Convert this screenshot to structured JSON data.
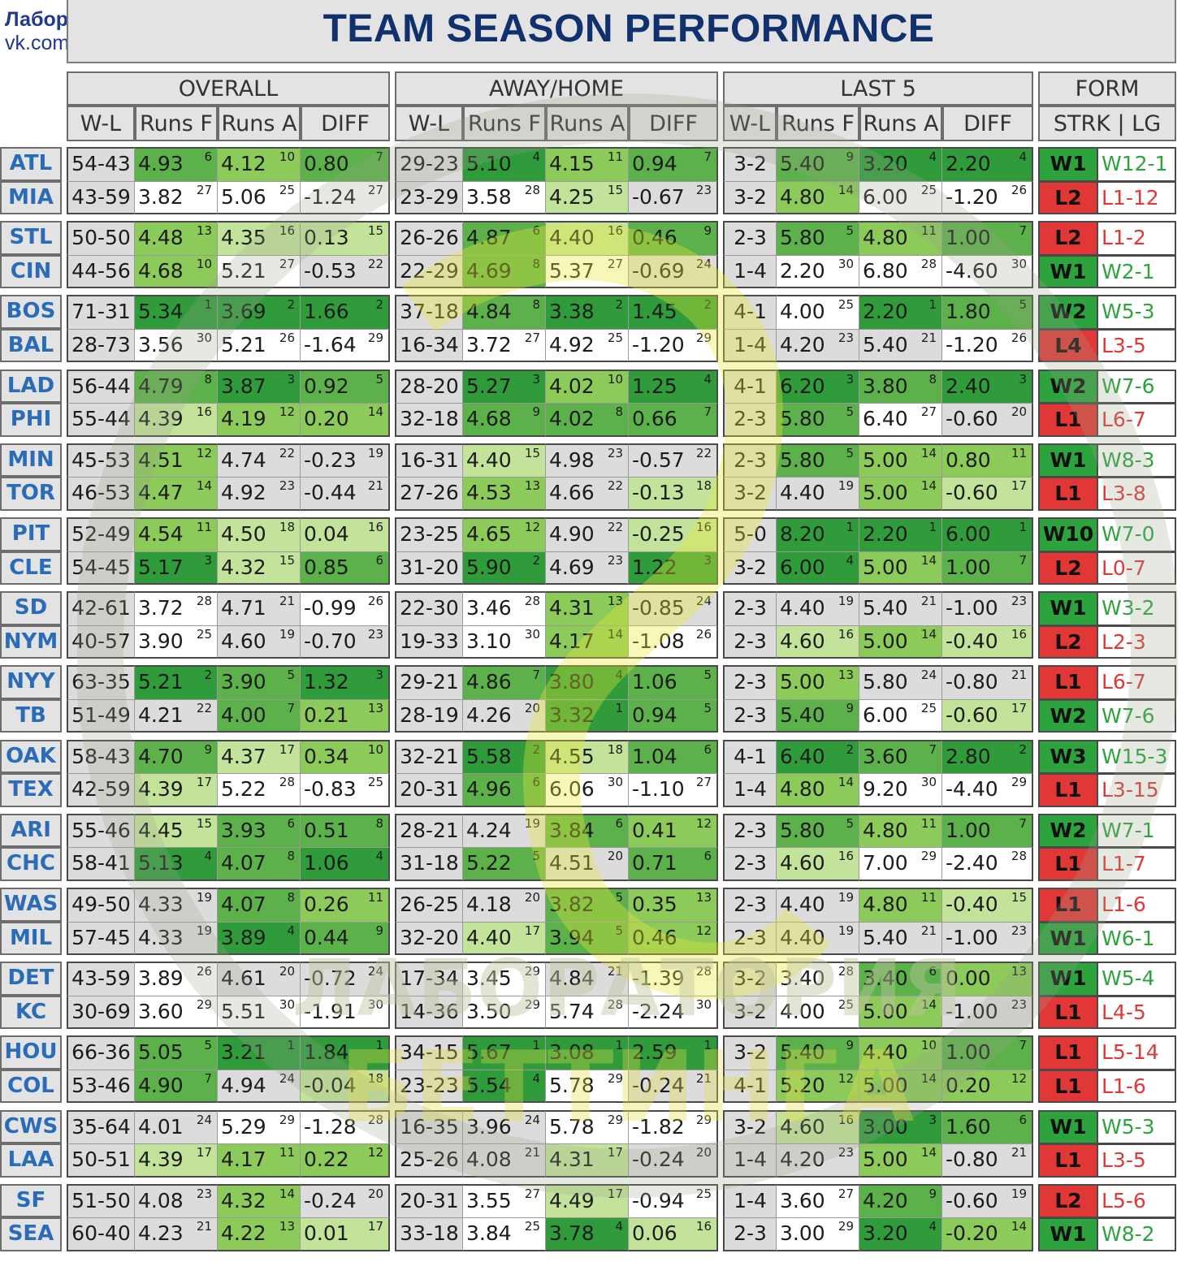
{
  "credit": {
    "line1": "Лаборатория беттинга ©",
    "line2": "vk.com/bettlab"
  },
  "title": "TEAM SEASON PERFORMANCE",
  "watermark": {
    "line1": "ЛАБОРАТОРИЯ",
    "line2": "БЕТТИНГА"
  },
  "groups": {
    "overall": "OVERALL",
    "awayhome": "AWAY/HOME",
    "last5": "LAST 5",
    "form": "FORM"
  },
  "columns": {
    "wl": "W-L",
    "rf": "Runs F",
    "ra": "Runs A",
    "diff": "DIFF",
    "strk_lg": "STRK | LG"
  },
  "colors": {
    "g1": "#2f9b3a",
    "g2": "#5cb14a",
    "g3": "#8cca5a",
    "g4": "#c4e39a",
    "gray": "#dcdcdc",
    "white": "#ffffff",
    "win": "#2ca33c",
    "loss": "#e23737",
    "team": "#2b6cb8"
  },
  "pairs": [
    [
      {
        "team": "ATL",
        "o": [
          "54-43",
          "4.93",
          "6",
          "4.12",
          "10",
          "0.80",
          "7"
        ],
        "a": [
          "29-23",
          "5.10",
          "4",
          "4.15",
          "11",
          "0.94",
          "7"
        ],
        "l": [
          "3-2",
          "5.40",
          "9",
          "3.20",
          "4",
          "2.20",
          "4"
        ],
        "strk": "W1",
        "lg": "W12-1"
      },
      {
        "team": "MIA",
        "o": [
          "43-59",
          "3.82",
          "27",
          "5.06",
          "25",
          "-1.24",
          "27"
        ],
        "a": [
          "23-29",
          "3.58",
          "28",
          "4.25",
          "15",
          "-0.67",
          "23"
        ],
        "l": [
          "3-2",
          "4.80",
          "14",
          "6.00",
          "25",
          "-1.20",
          "26"
        ],
        "strk": "L2",
        "lg": "L1-12"
      }
    ],
    [
      {
        "team": "STL",
        "o": [
          "50-50",
          "4.48",
          "13",
          "4.35",
          "16",
          "0.13",
          "15"
        ],
        "a": [
          "26-26",
          "4.87",
          "6",
          "4.40",
          "16",
          "0.46",
          "9"
        ],
        "l": [
          "2-3",
          "5.80",
          "5",
          "4.80",
          "11",
          "1.00",
          "7"
        ],
        "strk": "L2",
        "lg": "L1-2"
      },
      {
        "team": "CIN",
        "o": [
          "44-56",
          "4.68",
          "10",
          "5.21",
          "27",
          "-0.53",
          "22"
        ],
        "a": [
          "22-29",
          "4.69",
          "8",
          "5.37",
          "27",
          "-0.69",
          "24"
        ],
        "l": [
          "1-4",
          "2.20",
          "30",
          "6.80",
          "28",
          "-4.60",
          "30"
        ],
        "strk": "W1",
        "lg": "W2-1"
      }
    ],
    [
      {
        "team": "BOS",
        "o": [
          "71-31",
          "5.34",
          "1",
          "3.69",
          "2",
          "1.66",
          "2"
        ],
        "a": [
          "37-18",
          "4.84",
          "8",
          "3.38",
          "2",
          "1.45",
          "2"
        ],
        "l": [
          "4-1",
          "4.00",
          "25",
          "2.20",
          "1",
          "1.80",
          "5"
        ],
        "strk": "W2",
        "lg": "W5-3"
      },
      {
        "team": "BAL",
        "o": [
          "28-73",
          "3.56",
          "30",
          "5.21",
          "26",
          "-1.64",
          "29"
        ],
        "a": [
          "16-34",
          "3.72",
          "27",
          "4.92",
          "25",
          "-1.20",
          "29"
        ],
        "l": [
          "1-4",
          "4.20",
          "23",
          "5.40",
          "21",
          "-1.20",
          "26"
        ],
        "strk": "L4",
        "lg": "L3-5"
      }
    ],
    [
      {
        "team": "LAD",
        "o": [
          "56-44",
          "4.79",
          "8",
          "3.87",
          "3",
          "0.92",
          "5"
        ],
        "a": [
          "28-20",
          "5.27",
          "3",
          "4.02",
          "10",
          "1.25",
          "4"
        ],
        "l": [
          "4-1",
          "6.20",
          "3",
          "3.80",
          "8",
          "2.40",
          "3"
        ],
        "strk": "W2",
        "lg": "W7-6"
      },
      {
        "team": "PHI",
        "o": [
          "55-44",
          "4.39",
          "16",
          "4.19",
          "12",
          "0.20",
          "14"
        ],
        "a": [
          "32-18",
          "4.68",
          "9",
          "4.02",
          "8",
          "0.66",
          "7"
        ],
        "l": [
          "2-3",
          "5.80",
          "5",
          "6.40",
          "27",
          "-0.60",
          "20"
        ],
        "strk": "L1",
        "lg": "L6-7"
      }
    ],
    [
      {
        "team": "MIN",
        "o": [
          "45-53",
          "4.51",
          "12",
          "4.74",
          "22",
          "-0.23",
          "19"
        ],
        "a": [
          "16-31",
          "4.40",
          "15",
          "4.98",
          "23",
          "-0.57",
          "22"
        ],
        "l": [
          "2-3",
          "5.80",
          "5",
          "5.00",
          "14",
          "0.80",
          "11"
        ],
        "strk": "W1",
        "lg": "W8-3"
      },
      {
        "team": "TOR",
        "o": [
          "46-53",
          "4.47",
          "14",
          "4.92",
          "23",
          "-0.44",
          "21"
        ],
        "a": [
          "27-26",
          "4.53",
          "13",
          "4.66",
          "22",
          "-0.13",
          "18"
        ],
        "l": [
          "3-2",
          "4.40",
          "19",
          "5.00",
          "14",
          "-0.60",
          "17"
        ],
        "strk": "L1",
        "lg": "L3-8"
      }
    ],
    [
      {
        "team": "PIT",
        "o": [
          "52-49",
          "4.54",
          "11",
          "4.50",
          "18",
          "0.04",
          "16"
        ],
        "a": [
          "23-25",
          "4.65",
          "12",
          "4.90",
          "22",
          "-0.25",
          "16"
        ],
        "l": [
          "5-0",
          "8.20",
          "1",
          "2.20",
          "1",
          "6.00",
          "1"
        ],
        "strk": "W10",
        "lg": "W7-0"
      },
      {
        "team": "CLE",
        "o": [
          "54-45",
          "5.17",
          "3",
          "4.32",
          "15",
          "0.85",
          "6"
        ],
        "a": [
          "31-20",
          "5.90",
          "2",
          "4.69",
          "23",
          "1.22",
          "3"
        ],
        "l": [
          "3-2",
          "6.00",
          "4",
          "5.00",
          "14",
          "1.00",
          "7"
        ],
        "strk": "L2",
        "lg": "L0-7"
      }
    ],
    [
      {
        "team": "SD",
        "o": [
          "42-61",
          "3.72",
          "28",
          "4.71",
          "21",
          "-0.99",
          "26"
        ],
        "a": [
          "22-30",
          "3.46",
          "28",
          "4.31",
          "13",
          "-0.85",
          "24"
        ],
        "l": [
          "2-3",
          "4.40",
          "19",
          "5.40",
          "21",
          "-1.00",
          "23"
        ],
        "strk": "W1",
        "lg": "W3-2"
      },
      {
        "team": "NYM",
        "o": [
          "40-57",
          "3.90",
          "25",
          "4.60",
          "19",
          "-0.70",
          "23"
        ],
        "a": [
          "19-33",
          "3.10",
          "30",
          "4.17",
          "14",
          "-1.08",
          "26"
        ],
        "l": [
          "2-3",
          "4.60",
          "16",
          "5.00",
          "14",
          "-0.40",
          "16"
        ],
        "strk": "L2",
        "lg": "L2-3"
      }
    ],
    [
      {
        "team": "NYY",
        "o": [
          "63-35",
          "5.21",
          "2",
          "3.90",
          "5",
          "1.32",
          "3"
        ],
        "a": [
          "29-21",
          "4.86",
          "7",
          "3.80",
          "4",
          "1.06",
          "5"
        ],
        "l": [
          "2-3",
          "5.00",
          "13",
          "5.80",
          "24",
          "-0.80",
          "21"
        ],
        "strk": "L1",
        "lg": "L6-7"
      },
      {
        "team": "TB",
        "o": [
          "51-49",
          "4.21",
          "22",
          "4.00",
          "7",
          "0.21",
          "13"
        ],
        "a": [
          "28-19",
          "4.26",
          "20",
          "3.32",
          "1",
          "0.94",
          "5"
        ],
        "l": [
          "2-3",
          "5.40",
          "9",
          "6.00",
          "25",
          "-0.60",
          "17"
        ],
        "strk": "W2",
        "lg": "W7-6"
      }
    ],
    [
      {
        "team": "OAK",
        "o": [
          "58-43",
          "4.70",
          "9",
          "4.37",
          "17",
          "0.34",
          "10"
        ],
        "a": [
          "32-21",
          "5.58",
          "2",
          "4.55",
          "18",
          "1.04",
          "6"
        ],
        "l": [
          "4-1",
          "6.40",
          "2",
          "3.60",
          "7",
          "2.80",
          "2"
        ],
        "strk": "W3",
        "lg": "W15-3"
      },
      {
        "team": "TEX",
        "o": [
          "42-59",
          "4.39",
          "17",
          "5.22",
          "28",
          "-0.83",
          "25"
        ],
        "a": [
          "20-31",
          "4.96",
          "6",
          "6.06",
          "30",
          "-1.10",
          "27"
        ],
        "l": [
          "1-4",
          "4.80",
          "14",
          "9.20",
          "30",
          "-4.40",
          "29"
        ],
        "strk": "L1",
        "lg": "L3-15"
      }
    ],
    [
      {
        "team": "ARI",
        "o": [
          "55-46",
          "4.45",
          "15",
          "3.93",
          "6",
          "0.51",
          "8"
        ],
        "a": [
          "28-21",
          "4.24",
          "19",
          "3.84",
          "6",
          "0.41",
          "12"
        ],
        "l": [
          "2-3",
          "5.80",
          "5",
          "4.80",
          "11",
          "1.00",
          "7"
        ],
        "strk": "W2",
        "lg": "W7-1"
      },
      {
        "team": "CHC",
        "o": [
          "58-41",
          "5.13",
          "4",
          "4.07",
          "8",
          "1.06",
          "4"
        ],
        "a": [
          "31-18",
          "5.22",
          "5",
          "4.51",
          "20",
          "0.71",
          "6"
        ],
        "l": [
          "2-3",
          "4.60",
          "16",
          "7.00",
          "29",
          "-2.40",
          "28"
        ],
        "strk": "L1",
        "lg": "L1-7"
      }
    ],
    [
      {
        "team": "WAS",
        "o": [
          "49-50",
          "4.33",
          "19",
          "4.07",
          "8",
          "0.26",
          "11"
        ],
        "a": [
          "26-25",
          "4.18",
          "20",
          "3.82",
          "5",
          "0.35",
          "13"
        ],
        "l": [
          "2-3",
          "4.40",
          "19",
          "4.80",
          "11",
          "-0.40",
          "15"
        ],
        "strk": "L1",
        "lg": "L1-6"
      },
      {
        "team": "MIL",
        "o": [
          "57-45",
          "4.33",
          "19",
          "3.89",
          "4",
          "0.44",
          "9"
        ],
        "a": [
          "32-20",
          "4.40",
          "17",
          "3.94",
          "5",
          "0.46",
          "12"
        ],
        "l": [
          "2-3",
          "4.40",
          "19",
          "5.40",
          "21",
          "-1.00",
          "23"
        ],
        "strk": "W1",
        "lg": "W6-1"
      }
    ],
    [
      {
        "team": "DET",
        "o": [
          "43-59",
          "3.89",
          "26",
          "4.61",
          "20",
          "-0.72",
          "24"
        ],
        "a": [
          "17-34",
          "3.45",
          "29",
          "4.84",
          "21",
          "-1.39",
          "28"
        ],
        "l": [
          "3-2",
          "3.40",
          "28",
          "3.40",
          "6",
          "0.00",
          "13"
        ],
        "strk": "W1",
        "lg": "W5-4"
      },
      {
        "team": "KC",
        "o": [
          "30-69",
          "3.60",
          "29",
          "5.51",
          "30",
          "-1.91",
          "30"
        ],
        "a": [
          "14-36",
          "3.50",
          "29",
          "5.74",
          "28",
          "-2.24",
          "30"
        ],
        "l": [
          "3-2",
          "4.00",
          "25",
          "5.00",
          "14",
          "-1.00",
          "23"
        ],
        "strk": "L1",
        "lg": "L4-5"
      }
    ],
    [
      {
        "team": "HOU",
        "o": [
          "66-36",
          "5.05",
          "5",
          "3.21",
          "1",
          "1.84",
          "1"
        ],
        "a": [
          "34-15",
          "5.67",
          "1",
          "3.08",
          "1",
          "2.59",
          "1"
        ],
        "l": [
          "3-2",
          "5.40",
          "9",
          "4.40",
          "10",
          "1.00",
          "7"
        ],
        "strk": "L1",
        "lg": "L5-14"
      },
      {
        "team": "COL",
        "o": [
          "53-46",
          "4.90",
          "7",
          "4.94",
          "24",
          "-0.04",
          "18"
        ],
        "a": [
          "23-23",
          "5.54",
          "4",
          "5.78",
          "29",
          "-0.24",
          "21"
        ],
        "l": [
          "4-1",
          "5.20",
          "12",
          "5.00",
          "14",
          "0.20",
          "12"
        ],
        "strk": "L1",
        "lg": "L1-6"
      }
    ],
    [
      {
        "team": "CWS",
        "o": [
          "35-64",
          "4.01",
          "24",
          "5.29",
          "29",
          "-1.28",
          "28"
        ],
        "a": [
          "16-35",
          "3.96",
          "24",
          "5.78",
          "29",
          "-1.82",
          "29"
        ],
        "l": [
          "3-2",
          "4.60",
          "16",
          "3.00",
          "3",
          "1.60",
          "6"
        ],
        "strk": "W1",
        "lg": "W5-3"
      },
      {
        "team": "LAA",
        "o": [
          "50-51",
          "4.39",
          "17",
          "4.17",
          "11",
          "0.22",
          "12"
        ],
        "a": [
          "25-26",
          "4.08",
          "21",
          "4.31",
          "17",
          "-0.24",
          "20"
        ],
        "l": [
          "1-4",
          "4.20",
          "23",
          "5.00",
          "14",
          "-0.80",
          "21"
        ],
        "strk": "L1",
        "lg": "L3-5"
      }
    ],
    [
      {
        "team": "SF",
        "o": [
          "51-50",
          "4.08",
          "23",
          "4.32",
          "14",
          "-0.24",
          "20"
        ],
        "a": [
          "20-31",
          "3.55",
          "27",
          "4.49",
          "17",
          "-0.94",
          "25"
        ],
        "l": [
          "1-4",
          "3.60",
          "27",
          "4.20",
          "9",
          "-0.60",
          "19"
        ],
        "strk": "L2",
        "lg": "L5-6"
      },
      {
        "team": "SEA",
        "o": [
          "60-40",
          "4.23",
          "21",
          "4.22",
          "13",
          "0.01",
          "17"
        ],
        "a": [
          "33-18",
          "3.84",
          "25",
          "3.78",
          "4",
          "0.06",
          "16"
        ],
        "l": [
          "2-3",
          "3.00",
          "29",
          "3.20",
          "4",
          "-0.20",
          "14"
        ],
        "strk": "W1",
        "lg": "W8-2"
      }
    ]
  ]
}
